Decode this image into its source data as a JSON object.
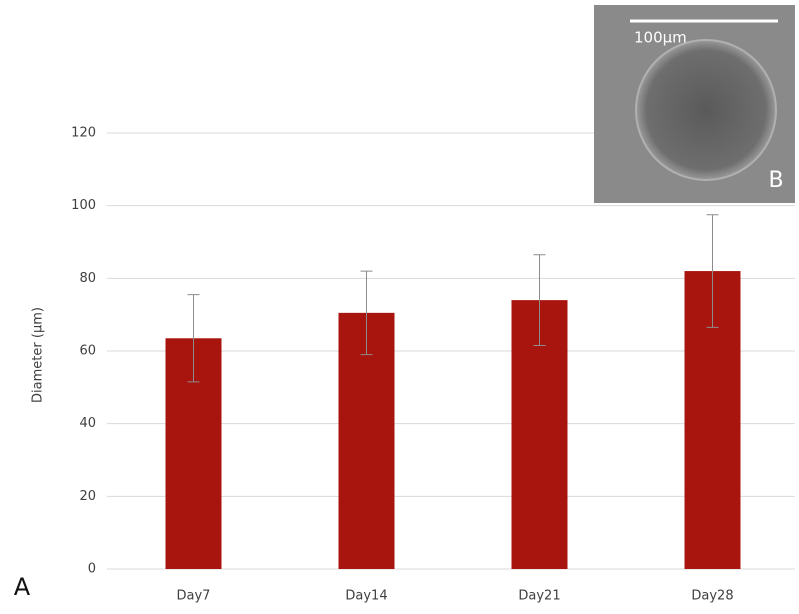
{
  "chart_data": {
    "type": "bar",
    "y_label": "Diameter (µm)",
    "categories": [
      "Day7",
      "Day14",
      "Day21",
      "Day28"
    ],
    "values": [
      63.5,
      70.5,
      74,
      82
    ],
    "errors": [
      12,
      11.5,
      12.5,
      15.5
    ],
    "color": "#a8140e",
    "ylim": [
      0,
      120
    ],
    "yticks": [
      0,
      20,
      40,
      60,
      80,
      100,
      120
    ],
    "grid": true,
    "panel_label": "A",
    "inset_label": "B",
    "scale_bar_label": "100µm"
  }
}
